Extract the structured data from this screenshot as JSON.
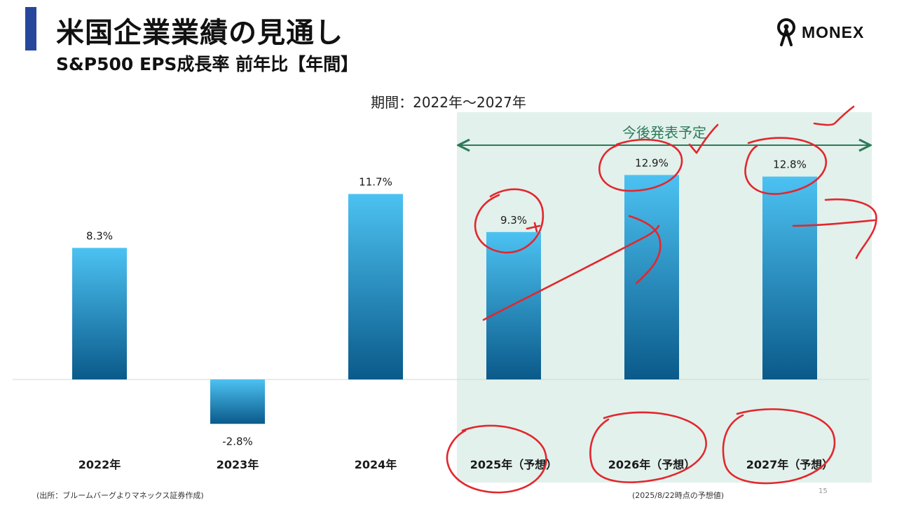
{
  "header": {
    "title": "米国企業業績の見通し",
    "subtitle": "S&P500 EPS成長率 前年比【年間】"
  },
  "logo": {
    "text": "MONEX"
  },
  "period_text": "期間：2022年～2027年",
  "forecast_label": "今後発表予定",
  "footer": {
    "source": "(出所：ブルームバーグよりマネックス証券作成)",
    "note": "(2025/8/22時点の予想値)",
    "page_number": "15"
  },
  "colors": {
    "title_bar": "#26479b",
    "bar_top": "#4cc2f2",
    "bar_bottom": "#0a5a8a",
    "forecast_bg": "#e2f1ec",
    "forecast_accent": "#2e7a5a",
    "annotation": "#e3262d"
  },
  "chart_data": {
    "type": "bar",
    "categories": [
      "2022年",
      "2023年",
      "2024年",
      "2025年（予想）",
      "2026年（予想）",
      "2027年（予想）"
    ],
    "values": [
      8.3,
      -2.8,
      11.7,
      9.3,
      12.9,
      12.8
    ],
    "value_labels": [
      "8.3%",
      "-2.8%",
      "11.7%",
      "9.3%",
      "12.9%",
      "12.8%"
    ],
    "unit": "%",
    "ylim": [
      -4.5,
      21
    ],
    "grid": false,
    "forecast_categories": [
      "2025年（予想）",
      "2026年（予想）",
      "2027年（予想）"
    ]
  }
}
